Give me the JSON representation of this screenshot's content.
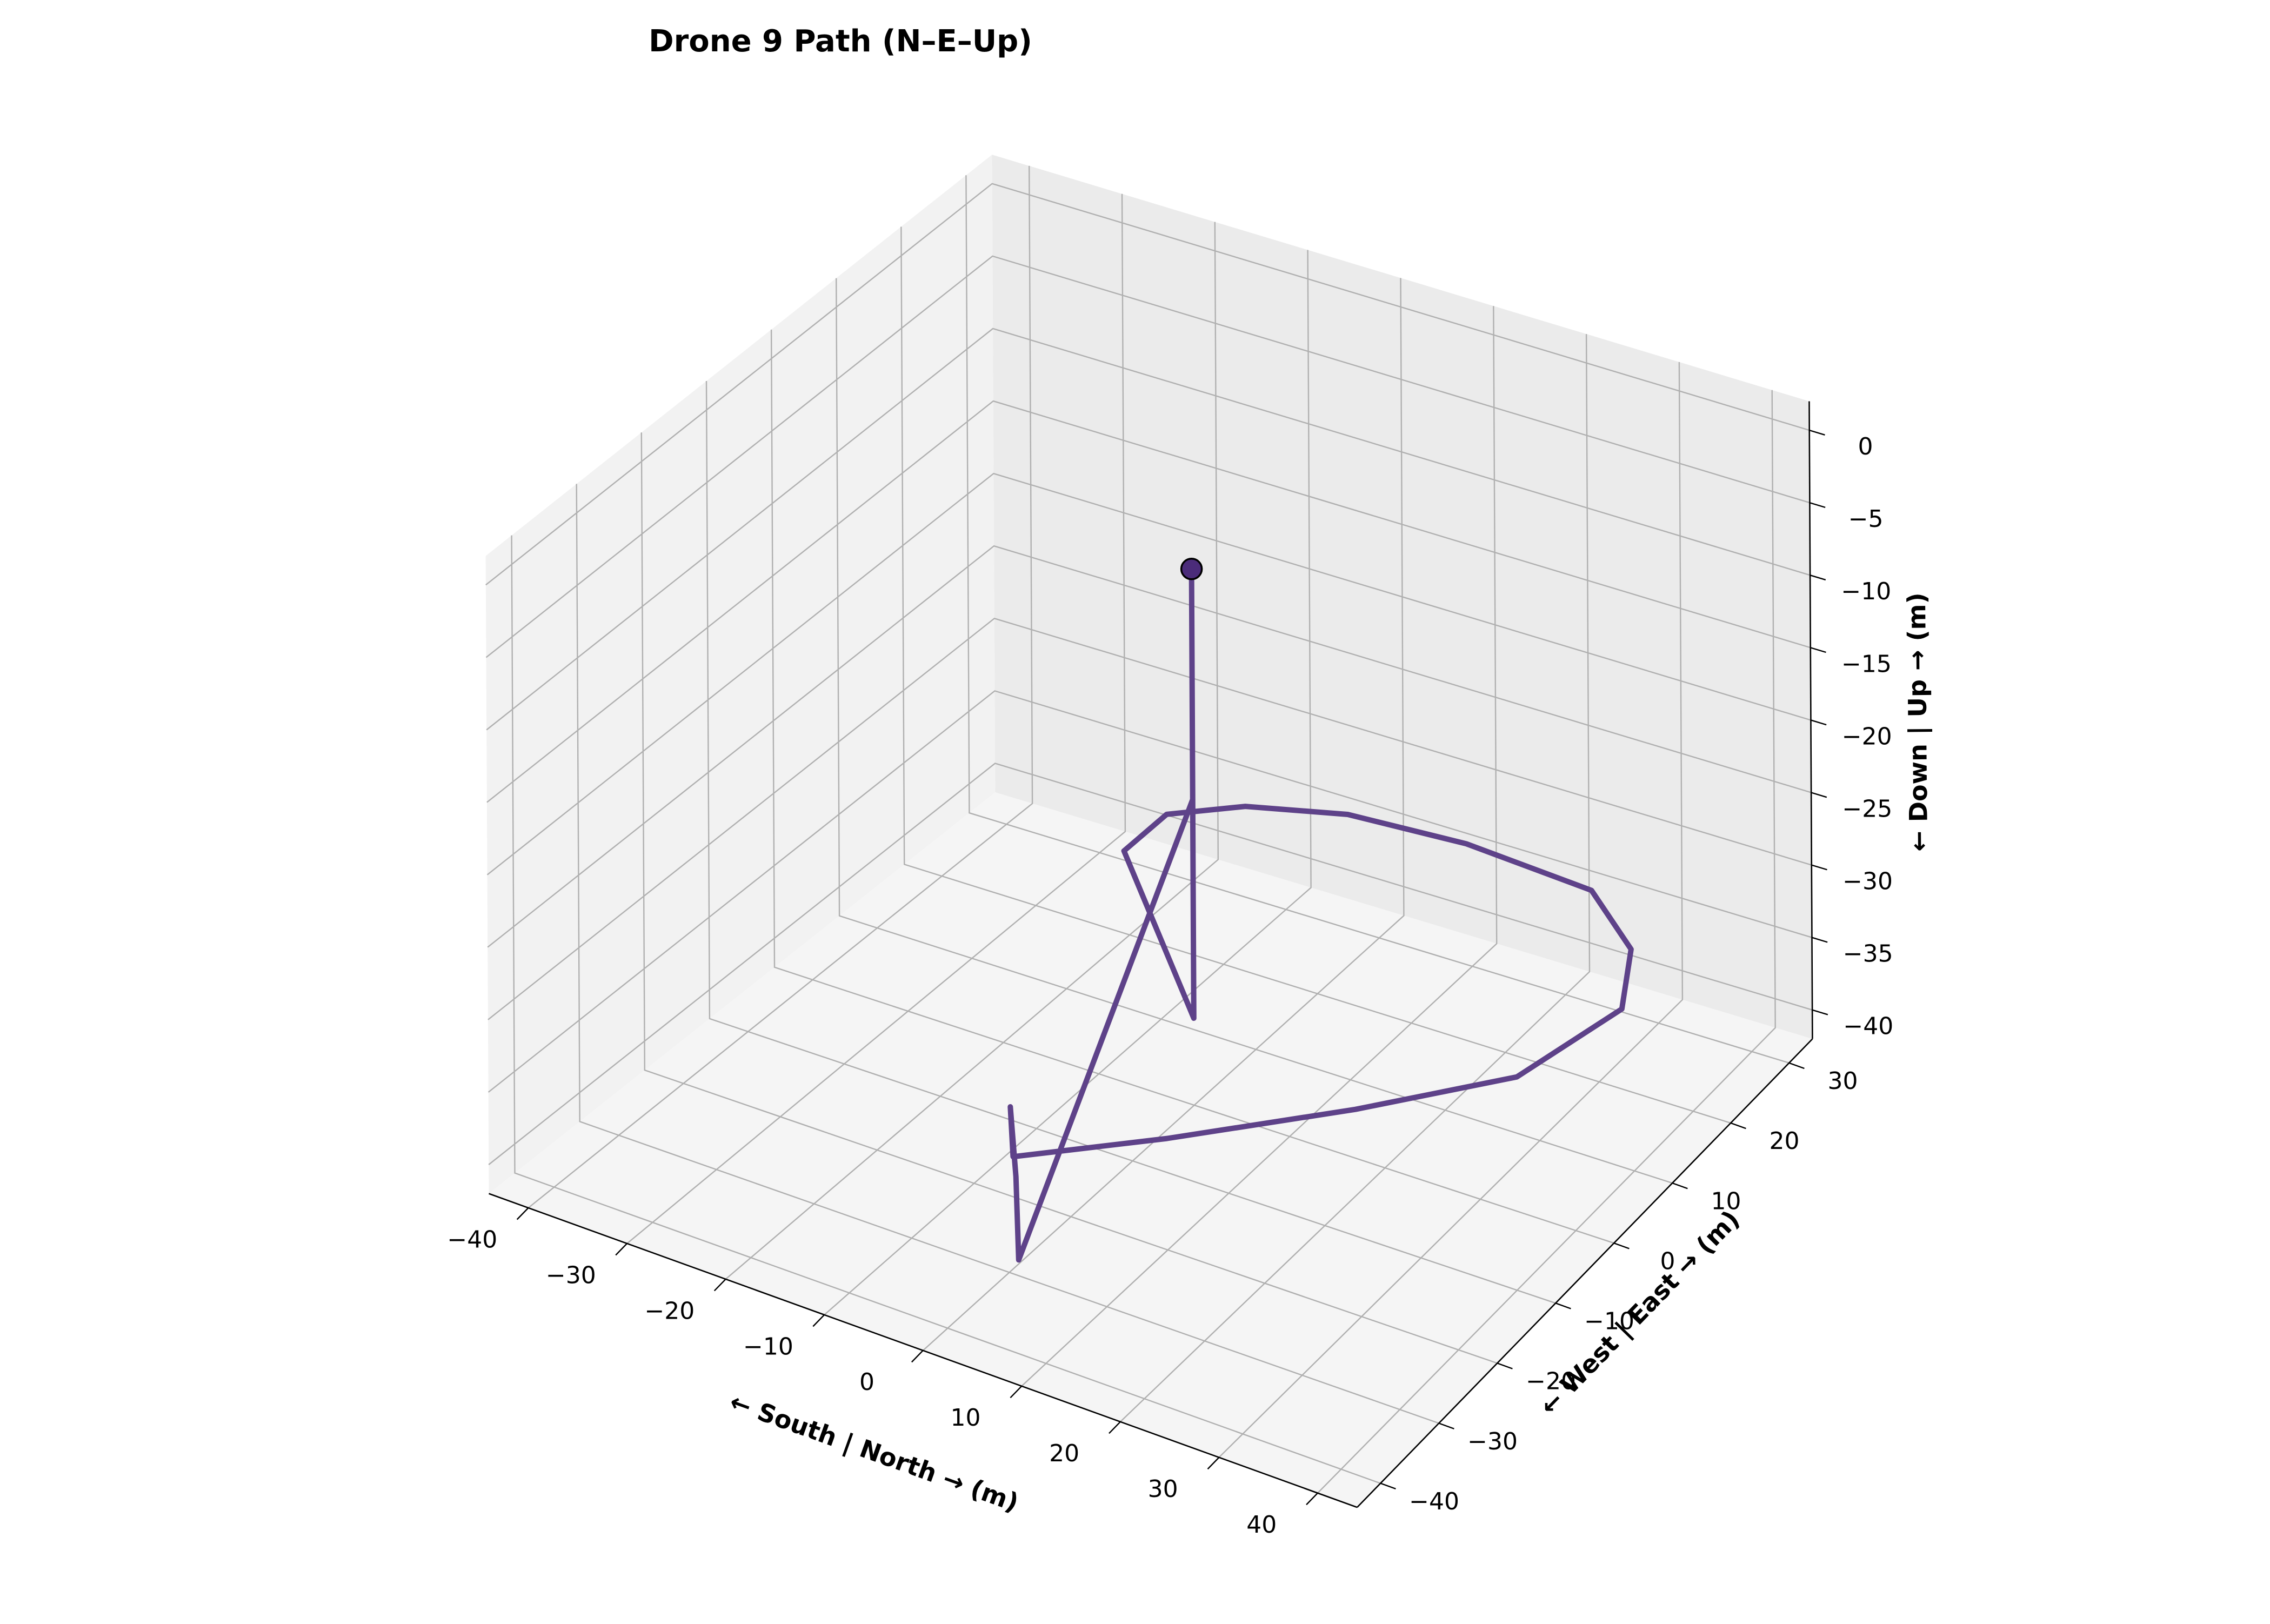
{
  "chart_data": {
    "type": "line",
    "projection": "3d",
    "title": "Drone 9 Path (N–E–Up)",
    "xlabel": "← South | North → (m)",
    "ylabel": "← West | East → (m)",
    "zlabel": "← Down | Up → (m)",
    "xlim": [
      -44,
      44
    ],
    "ylim": [
      -44,
      34
    ],
    "zlim": [
      -42,
      2
    ],
    "xticks": [
      -40,
      -30,
      -20,
      -10,
      0,
      10,
      20,
      30,
      40
    ],
    "yticks": [
      -40,
      -30,
      -20,
      -10,
      0,
      10,
      20,
      30
    ],
    "zticks": [
      0,
      -5,
      -10,
      -15,
      -20,
      -25,
      -30,
      -35,
      -40
    ],
    "grid": true,
    "series": [
      {
        "color": "#5e4289",
        "marker_color": "#4b2c7a",
        "points": [
          [
            0,
            0,
            -5
          ],
          [
            0,
            0,
            -36
          ],
          [
            -12.43,
            7.86,
            -30.1
          ],
          [
            -12.24,
            14.4,
            -30
          ],
          [
            -6.8,
            18.8,
            -30
          ],
          [
            2,
            22,
            -30
          ],
          [
            14,
            23,
            -30
          ],
          [
            28,
            22,
            -30
          ],
          [
            36,
            16,
            -30
          ],
          [
            40,
            8,
            -30
          ],
          [
            37,
            -5,
            -30
          ],
          [
            27,
            -16,
            -30
          ],
          [
            15,
            -28,
            -30
          ],
          [
            5.04,
            -37.27,
            -30
          ],
          [
            4.69,
            -37.12,
            -26.7
          ],
          [
            5.44,
            -37.46,
            -31.2
          ],
          [
            5.79,
            -37.64,
            -36.8
          ],
          [
            0,
            0,
            -20.9
          ]
        ]
      }
    ]
  }
}
